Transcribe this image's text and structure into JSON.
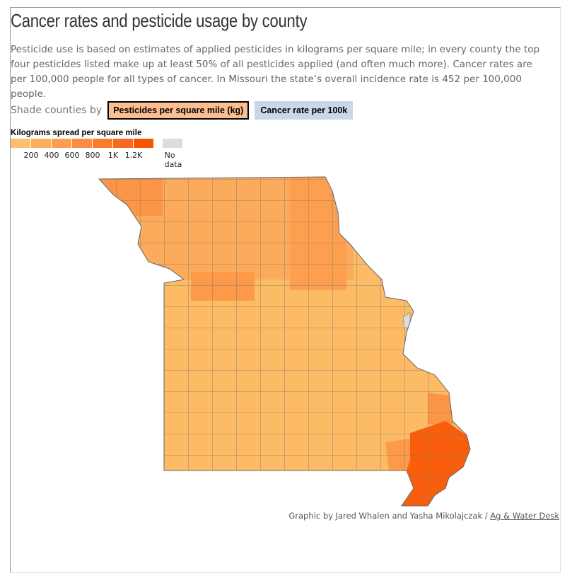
{
  "header": {
    "title": "Cancer rates and pesticide usage by county",
    "description": "Pesticide use is based on estimates of applied pesticides in kilograms per square mile; in every county the top four pesticides listed make up at least 50% of all pesticides applied (and often much more). Cancer rates are per 100,000 people for all types of cancer. In Missouri the state’s overall incidence rate is 452 per 100,000 people."
  },
  "controls": {
    "label": "Shade counties by",
    "buttons": [
      "Pesticides per square mile (kg)",
      "Cancer rate per 100k"
    ]
  },
  "legend": {
    "title": "Kilograms spread per square mile",
    "labels": [
      "200",
      "400",
      "600",
      "800",
      "1K",
      "1.2K"
    ],
    "no_data": "No data"
  },
  "credit": {
    "text": "Graphic by Jared Whalen and Yasha Mikolajczak /",
    "link": "Ag & Water Desk"
  }
}
